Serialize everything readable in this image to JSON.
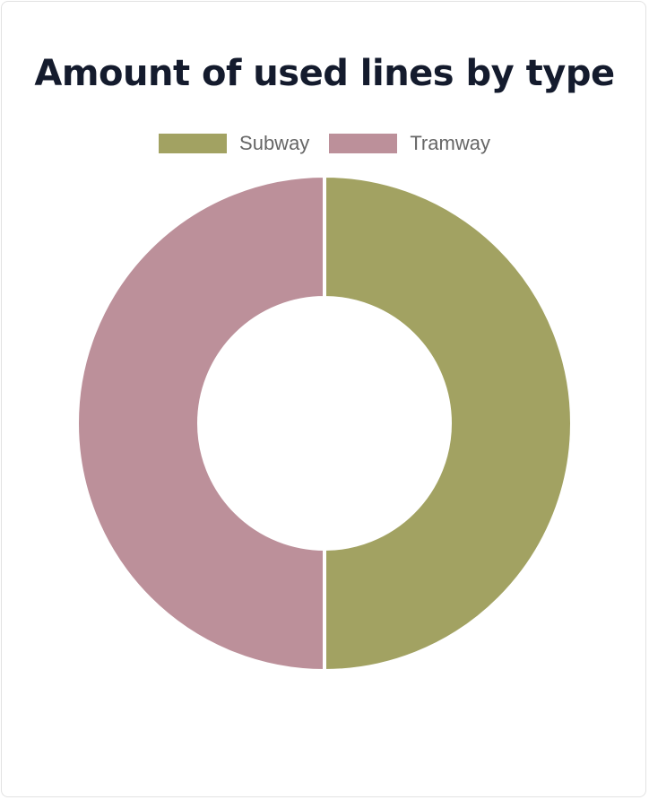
{
  "card": {
    "title": "Amount of used lines by type"
  },
  "chart_data": {
    "type": "pie",
    "variant": "doughnut",
    "title": "Amount of used lines by type",
    "categories": [
      "Subway",
      "Tramway"
    ],
    "values": [
      1,
      1
    ],
    "colors": [
      "#a2a262",
      "#bc909a"
    ],
    "legend": "top",
    "series": [
      {
        "values": [
          1,
          1
        ]
      }
    ]
  }
}
